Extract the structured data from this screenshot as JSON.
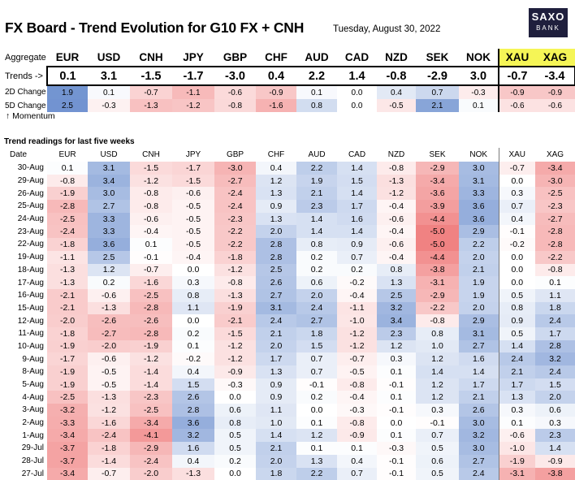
{
  "header": {
    "title": "FX Board - Trend Evolution for G10 FX + CNH",
    "date": "Tuesday, August 30, 2022",
    "logo_line1": "SAXO",
    "logo_line2": "BANK"
  },
  "aggregate": {
    "row_label": "Aggregate",
    "trends_label": "Trends ->",
    "change2d_label": "2D Change",
    "change5d_label": "5D Change",
    "momentum_label": "↑ Momentum",
    "currencies": [
      "EUR",
      "USD",
      "CNH",
      "JPY",
      "GBP",
      "CHF",
      "AUD",
      "CAD",
      "NZD",
      "SEK",
      "NOK",
      "XAU",
      "XAG"
    ],
    "trends": [
      "0.1",
      "3.1",
      "-1.5",
      "-1.7",
      "-3.0",
      "0.4",
      "2.2",
      "1.4",
      "-0.8",
      "-2.9",
      "3.0",
      "-0.7",
      "-3.4"
    ],
    "change_2d": [
      "1.9",
      "0.1",
      "-0.7",
      "-1.1",
      "-0.6",
      "-0.9",
      "0.1",
      "0.0",
      "0.4",
      "0.7",
      "-0.3",
      "-0.9",
      "-0.9"
    ],
    "change_5d": [
      "2.5",
      "-0.3",
      "-1.3",
      "-1.2",
      "-0.8",
      "-1.6",
      "0.8",
      "0.0",
      "-0.5",
      "2.1",
      "0.1",
      "-0.6",
      "-0.6"
    ]
  },
  "history": {
    "subtitle": "Trend readings for last five weeks",
    "date_header": "Date",
    "columns": [
      "EUR",
      "USD",
      "CNH",
      "JPY",
      "GBP",
      "CHF",
      "AUD",
      "CAD",
      "NZD",
      "SEK",
      "NOK",
      "XAU",
      "XAG"
    ],
    "rows": [
      {
        "date": "30-Aug",
        "values": [
          "0.1",
          "3.1",
          "-1.5",
          "-1.7",
          "-3.0",
          "0.4",
          "2.2",
          "1.4",
          "-0.8",
          "-2.9",
          "3.0",
          "-0.7",
          "-3.4"
        ]
      },
      {
        "date": "29-Aug",
        "values": [
          "-0.8",
          "3.4",
          "-1.2",
          "-1.5",
          "-2.7",
          "1.2",
          "1.9",
          "1.5",
          "-1.3",
          "-3.4",
          "3.1",
          "0.0",
          "-3.0"
        ]
      },
      {
        "date": "26-Aug",
        "values": [
          "-1.9",
          "3.0",
          "-0.8",
          "-0.6",
          "-2.4",
          "1.3",
          "2.1",
          "1.4",
          "-1.2",
          "-3.6",
          "3.3",
          "0.3",
          "-2.5"
        ]
      },
      {
        "date": "25-Aug",
        "values": [
          "-2.8",
          "2.7",
          "-0.8",
          "-0.5",
          "-2.4",
          "0.9",
          "2.3",
          "1.7",
          "-0.4",
          "-3.9",
          "3.6",
          "0.7",
          "-2.3"
        ]
      },
      {
        "date": "24-Aug",
        "values": [
          "-2.5",
          "3.3",
          "-0.6",
          "-0.5",
          "-2.3",
          "1.3",
          "1.4",
          "1.6",
          "-0.6",
          "-4.4",
          "3.6",
          "0.4",
          "-2.7"
        ]
      },
      {
        "date": "23-Aug",
        "values": [
          "-2.4",
          "3.3",
          "-0.4",
          "-0.5",
          "-2.2",
          "2.0",
          "1.4",
          "1.4",
          "-0.4",
          "-5.0",
          "2.9",
          "-0.1",
          "-2.8"
        ]
      },
      {
        "date": "22-Aug",
        "values": [
          "-1.8",
          "3.6",
          "0.1",
          "-0.5",
          "-2.2",
          "2.8",
          "0.8",
          "0.9",
          "-0.6",
          "-5.0",
          "2.2",
          "-0.2",
          "-2.8"
        ]
      },
      {
        "date": "19-Aug",
        "values": [
          "-1.1",
          "2.5",
          "-0.1",
          "-0.4",
          "-1.8",
          "2.8",
          "0.2",
          "0.7",
          "-0.4",
          "-4.4",
          "2.0",
          "0.0",
          "-2.2"
        ]
      },
      {
        "date": "18-Aug",
        "values": [
          "-1.3",
          "1.2",
          "-0.7",
          "0.0",
          "-1.2",
          "2.5",
          "0.2",
          "0.2",
          "0.8",
          "-3.8",
          "2.1",
          "0.0",
          "-0.8"
        ]
      },
      {
        "date": "17-Aug",
        "values": [
          "-1.3",
          "0.2",
          "-1.6",
          "0.3",
          "-0.8",
          "2.6",
          "0.6",
          "-0.2",
          "1.3",
          "-3.1",
          "1.9",
          "0.0",
          "0.1"
        ]
      },
      {
        "date": "16-Aug",
        "values": [
          "-2.1",
          "-0.6",
          "-2.5",
          "0.8",
          "-1.3",
          "2.7",
          "2.0",
          "-0.4",
          "2.5",
          "-2.9",
          "1.9",
          "0.5",
          "1.1"
        ]
      },
      {
        "date": "15-Aug",
        "values": [
          "-2.1",
          "-1.3",
          "-2.8",
          "1.1",
          "-1.9",
          "3.1",
          "2.4",
          "-1.1",
          "3.2",
          "-2.2",
          "2.0",
          "0.8",
          "1.8"
        ]
      },
      {
        "date": "12-Aug",
        "values": [
          "-2.0",
          "-2.6",
          "-2.6",
          "0.0",
          "-2.1",
          "2.4",
          "2.7",
          "-1.0",
          "3.4",
          "-0.8",
          "2.9",
          "0.9",
          "2.4"
        ]
      },
      {
        "date": "11-Aug",
        "values": [
          "-1.8",
          "-2.7",
          "-2.8",
          "0.2",
          "-1.5",
          "2.1",
          "1.8",
          "-1.2",
          "2.3",
          "0.8",
          "3.1",
          "0.5",
          "1.7"
        ]
      },
      {
        "date": "10-Aug",
        "values": [
          "-1.9",
          "-2.0",
          "-1.9",
          "0.1",
          "-1.2",
          "2.0",
          "1.5",
          "-1.2",
          "1.2",
          "1.0",
          "2.7",
          "1.4",
          "2.8"
        ]
      },
      {
        "date": "9-Aug",
        "values": [
          "-1.7",
          "-0.6",
          "-1.2",
          "-0.2",
          "-1.2",
          "1.7",
          "0.7",
          "-0.7",
          "0.3",
          "1.2",
          "1.6",
          "2.4",
          "3.2"
        ]
      },
      {
        "date": "8-Aug",
        "values": [
          "-1.9",
          "-0.5",
          "-1.4",
          "0.4",
          "-0.9",
          "1.3",
          "0.7",
          "-0.5",
          "0.1",
          "1.4",
          "1.4",
          "2.1",
          "2.4"
        ]
      },
      {
        "date": "5-Aug",
        "values": [
          "-1.9",
          "-0.5",
          "-1.4",
          "1.5",
          "-0.3",
          "0.9",
          "-0.1",
          "-0.8",
          "-0.1",
          "1.2",
          "1.7",
          "1.7",
          "1.5"
        ]
      },
      {
        "date": "4-Aug",
        "values": [
          "-2.5",
          "-1.3",
          "-2.3",
          "2.6",
          "0.0",
          "0.9",
          "0.2",
          "-0.4",
          "0.1",
          "1.2",
          "2.1",
          "1.3",
          "2.0"
        ]
      },
      {
        "date": "3-Aug",
        "values": [
          "-3.2",
          "-1.2",
          "-2.5",
          "2.8",
          "0.6",
          "1.1",
          "0.0",
          "-0.3",
          "-0.1",
          "0.3",
          "2.6",
          "0.3",
          "0.6"
        ]
      },
      {
        "date": "2-Aug",
        "values": [
          "-3.3",
          "-1.6",
          "-3.4",
          "3.6",
          "0.8",
          "1.0",
          "0.1",
          "-0.8",
          "0.0",
          "-0.1",
          "3.0",
          "0.1",
          "0.3"
        ]
      },
      {
        "date": "1-Aug",
        "values": [
          "-3.4",
          "-2.4",
          "-4.1",
          "3.2",
          "0.5",
          "1.4",
          "1.2",
          "-0.9",
          "0.1",
          "0.7",
          "3.2",
          "-0.6",
          "2.3"
        ]
      },
      {
        "date": "29-Jul",
        "values": [
          "-3.7",
          "-1.8",
          "-2.9",
          "1.6",
          "0.5",
          "2.1",
          "0.1",
          "0.1",
          "-0.3",
          "0.5",
          "3.0",
          "-1.0",
          "1.4"
        ]
      },
      {
        "date": "28-Jul",
        "values": [
          "-3.7",
          "-1.4",
          "-2.4",
          "0.4",
          "0.2",
          "2.0",
          "1.3",
          "0.4",
          "-0.1",
          "0.6",
          "2.7",
          "-1.9",
          "-0.9"
        ]
      },
      {
        "date": "27-Jul",
        "values": [
          "-3.4",
          "-0.7",
          "-2.0",
          "-1.3",
          "0.0",
          "1.8",
          "2.2",
          "0.7",
          "-0.1",
          "0.5",
          "2.4",
          "-3.1",
          "-3.8"
        ]
      }
    ]
  },
  "colors": {
    "positive": "#6c8fcf",
    "negative": "#f08a8a",
    "highlight_yellow": "#f5f556",
    "logo_bg": "#1f1f3d"
  }
}
